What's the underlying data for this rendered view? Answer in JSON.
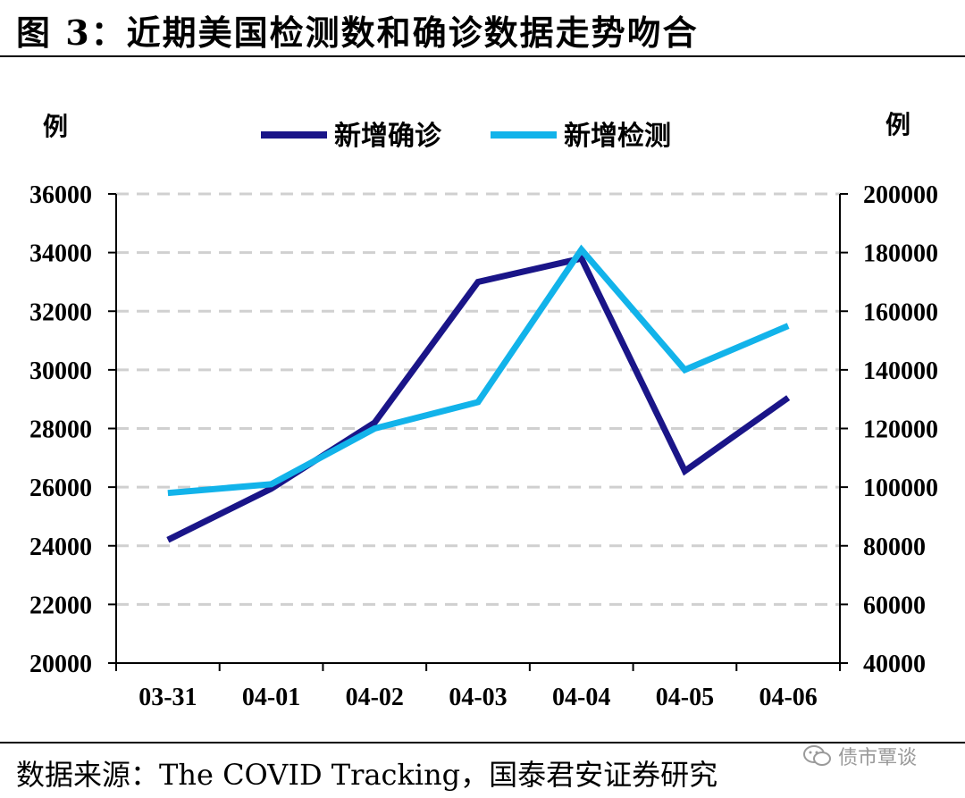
{
  "title": "图 3：近期美国检测数和确诊数据走势吻合",
  "source": "数据来源：The COVID Tracking，国泰君安证券研究",
  "watermark": "债市覃谈",
  "chart_data": {
    "type": "line",
    "categories": [
      "03-31",
      "04-01",
      "04-02",
      "04-03",
      "04-04",
      "04-05",
      "04-06"
    ],
    "ylabel_left": "例",
    "ylabel_right": "例",
    "ylim_left": [
      20000,
      36000
    ],
    "ylim_right": [
      40000,
      200000
    ],
    "yticks_left": [
      20000,
      22000,
      24000,
      26000,
      28000,
      30000,
      32000,
      34000,
      36000
    ],
    "yticks_right": [
      40000,
      60000,
      80000,
      100000,
      120000,
      140000,
      160000,
      180000,
      200000
    ],
    "grid": "horizontal dashed",
    "legend_position": "top-center",
    "series": [
      {
        "name": "新增确诊",
        "axis": "left",
        "color": "#1a1588",
        "values": [
          24200,
          25950,
          28200,
          33000,
          33800,
          26550,
          29050
        ]
      },
      {
        "name": "新增检测",
        "axis": "right",
        "color": "#12b3ea",
        "values": [
          98000,
          101000,
          120000,
          129000,
          181000,
          140000,
          155000
        ]
      }
    ]
  }
}
